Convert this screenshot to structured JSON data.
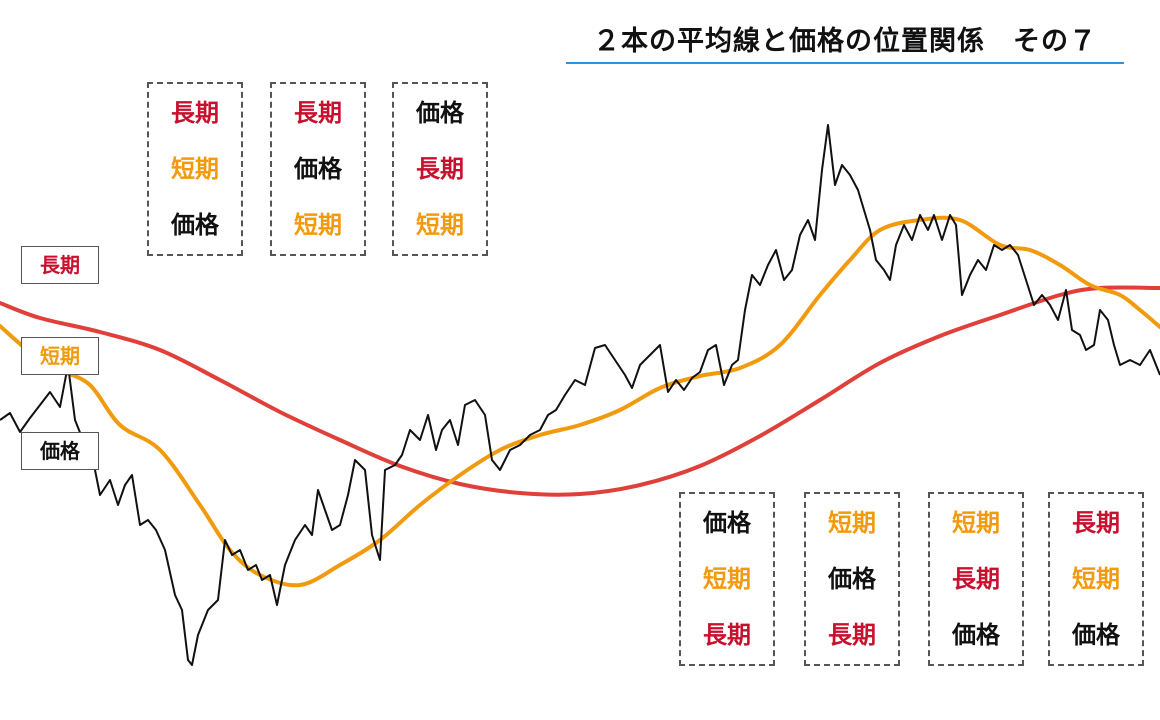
{
  "title": "２本の平均線と価格の位置関係　その７",
  "colors": {
    "long": "#c8102e",
    "short": "#f29a0e",
    "price": "#111111",
    "long_line": "#e0403a",
    "title_underline": "#2f93d8"
  },
  "labels": {
    "long": "長期",
    "short": "短期",
    "price": "価格"
  },
  "order_boxes_top": [
    {
      "rows": [
        "long",
        "short",
        "price"
      ]
    },
    {
      "rows": [
        "long",
        "price",
        "short"
      ]
    },
    {
      "rows": [
        "price",
        "long",
        "short"
      ]
    }
  ],
  "order_boxes_bottom": [
    {
      "rows": [
        "price",
        "short",
        "long"
      ]
    },
    {
      "rows": [
        "short",
        "price",
        "long"
      ]
    },
    {
      "rows": [
        "short",
        "long",
        "price"
      ]
    },
    {
      "rows": [
        "long",
        "short",
        "price"
      ]
    }
  ],
  "chart_data": {
    "type": "line",
    "title": "２本の平均線と価格の位置関係　その７",
    "series": [
      {
        "name": "長期",
        "key": "long"
      },
      {
        "name": "短期",
        "key": "short"
      },
      {
        "name": "価格",
        "key": "price"
      }
    ]
  }
}
